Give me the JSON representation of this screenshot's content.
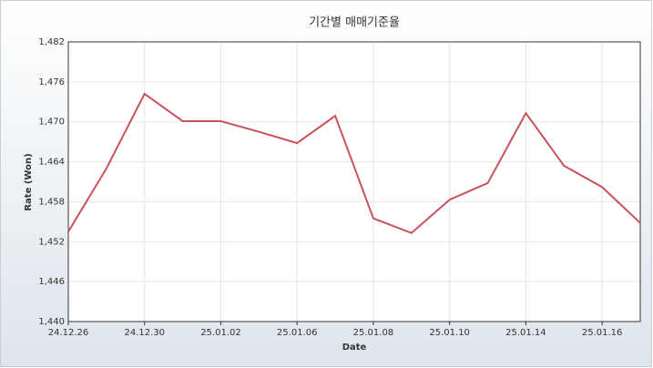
{
  "chart_data": {
    "type": "line",
    "title": "기간별 매매기준율",
    "x_label": "Date",
    "y_label": "Rate (Won)",
    "categories": [
      "24.12.26",
      null,
      "24.12.30",
      null,
      "25.01.02",
      null,
      "25.01.06",
      null,
      "25.01.08",
      null,
      "25.01.10",
      null,
      "25.01.14",
      null,
      "25.01.16",
      null
    ],
    "series": [
      {
        "name": "Rate",
        "color": "#c8535b",
        "values": [
          1453.5,
          1463.0,
          1474.2,
          1470.1,
          1470.1,
          1468.5,
          1466.8,
          1470.9,
          1455.5,
          1453.3,
          1458.3,
          1460.8,
          1471.3,
          1463.4,
          1460.2,
          1454.8
        ]
      }
    ],
    "ylim": [
      1440,
      1482
    ],
    "yticks": [
      {
        "value": 1440,
        "label": "1,440"
      },
      {
        "value": 1446,
        "label": "1,446"
      },
      {
        "value": 1452,
        "label": "1,452"
      },
      {
        "value": 1458,
        "label": "1,458"
      },
      {
        "value": 1464,
        "label": "1,464"
      },
      {
        "value": 1470,
        "label": "1,470"
      },
      {
        "value": 1476,
        "label": "1,476"
      },
      {
        "value": 1482,
        "label": "1,482"
      }
    ],
    "grid": true
  }
}
